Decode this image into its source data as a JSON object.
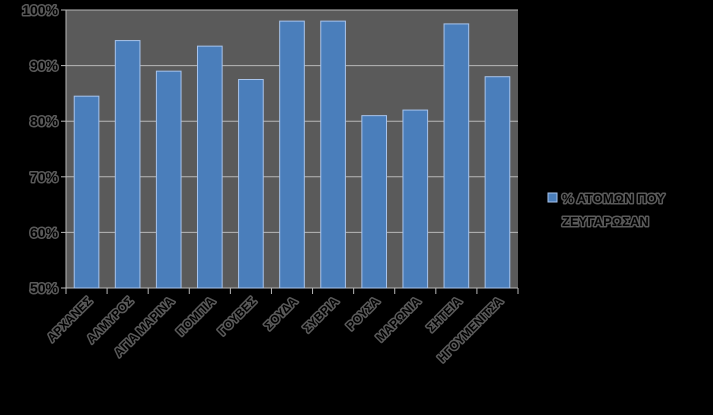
{
  "chart_data": {
    "type": "bar",
    "categories": [
      "ΑΡΧΑΝΕΣ",
      "ΑΛΜΥΡΟΣ",
      "ΑΓΙΑ ΜΑΡΙΝΑ",
      "ΠΟΜΠΙΑ",
      "ΓΟΥΒΕΣ",
      "ΣΟΥΔΑ",
      "ΣΥΒΡΙΑ",
      "ΡΟΥΣΑ",
      "ΜΑΡΩΝΙΑ",
      "ΣΗΤΕΙΑ",
      "ΗΓΟΥΜΕΝΙΤΣΑ"
    ],
    "series": [
      {
        "name": "% ΑΤΟΜΩΝ ΠΟΥ ΖΕΥΓΑΡΩΣΑΝ",
        "values": [
          84.5,
          94.5,
          89,
          93.5,
          87.5,
          98,
          98,
          81,
          82,
          97.5,
          88
        ]
      }
    ],
    "ylim": [
      0.5,
      1.0
    ],
    "yticks": [
      0.5,
      0.6,
      0.7,
      0.8,
      0.9,
      1.0
    ],
    "ytick_labels": [
      "50%",
      "60%",
      "70%",
      "80%",
      "90%",
      "100%"
    ],
    "grid": true,
    "legend_position": "right",
    "title": "",
    "xlabel": "",
    "ylabel": "",
    "colors": {
      "background": "#000000",
      "plot_area": "#5a5a5a",
      "bar": "#4a7ebb",
      "bar_edge": "#a8c4ec",
      "gridline": "#b8b8b8",
      "axis": "#b8b8b8"
    },
    "legend": {
      "line1": "% ΑΤΟΜΩΝ ΠΟΥ",
      "line2": "ΖΕΥΓΑΡΩΣΑΝ"
    }
  }
}
